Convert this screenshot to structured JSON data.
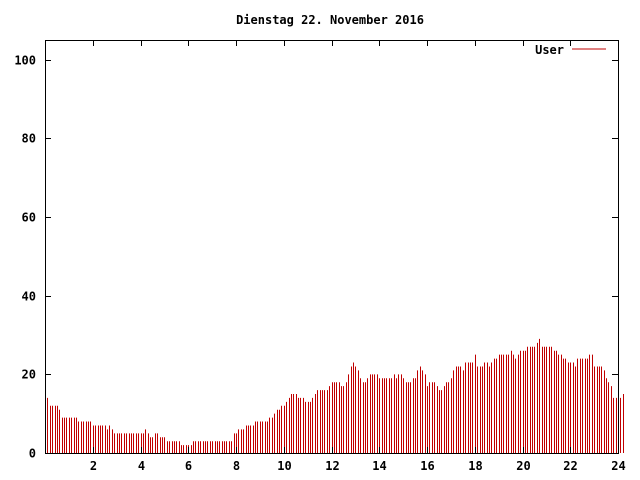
{
  "chart_data": {
    "type": "bar",
    "title": "Dienstag 22. November 2016",
    "xlabel": "",
    "ylabel": "",
    "xlim": [
      0,
      24
    ],
    "ylim": [
      0,
      105
    ],
    "xticks": [
      2,
      4,
      6,
      8,
      10,
      12,
      14,
      16,
      18,
      20,
      22,
      24
    ],
    "yticks": [
      0,
      20,
      40,
      60,
      80,
      100
    ],
    "grid": false,
    "legend_position": "top-right",
    "color": "#c00000",
    "series": [
      {
        "name": "User",
        "x_interval_hours": 0.1,
        "values": [
          15,
          14,
          12,
          12,
          12,
          12,
          11,
          9,
          9,
          9,
          9,
          9,
          9,
          9,
          8,
          8,
          8,
          8,
          8,
          8,
          7,
          7,
          7,
          7,
          7,
          7,
          6,
          7,
          6,
          5,
          5,
          5,
          5,
          5,
          5,
          5,
          5,
          5,
          5,
          5,
          5,
          5,
          6,
          5,
          4,
          4,
          5,
          5,
          4,
          4,
          4,
          3,
          3,
          3,
          3,
          3,
          3,
          2,
          2,
          2,
          2,
          2,
          3,
          3,
          3,
          3,
          3,
          3,
          3,
          3,
          3,
          3,
          3,
          3,
          3,
          3,
          3,
          3,
          3,
          5,
          5,
          6,
          6,
          6,
          7,
          7,
          7,
          7,
          8,
          8,
          8,
          8,
          8,
          8,
          9,
          9,
          10,
          11,
          11,
          12,
          12,
          13,
          14,
          15,
          15,
          15,
          14,
          14,
          14,
          13,
          13,
          13,
          14,
          15,
          16,
          16,
          16,
          16,
          16,
          17,
          18,
          18,
          18,
          18,
          17,
          17,
          18,
          20,
          22,
          23,
          22,
          21,
          19,
          18,
          18,
          19,
          20,
          20,
          20,
          20,
          19,
          19,
          19,
          19,
          19,
          19,
          20,
          19,
          20,
          20,
          19,
          18,
          18,
          18,
          19,
          19,
          21,
          22,
          21,
          20,
          17,
          18,
          18,
          18,
          17,
          16,
          16,
          17,
          18,
          18,
          19,
          21,
          22,
          22,
          22,
          21,
          23,
          23,
          23,
          23,
          25,
          22,
          22,
          22,
          23,
          23,
          22,
          23,
          24,
          24,
          25,
          25,
          25,
          25,
          25,
          26,
          25,
          24,
          25,
          26,
          26,
          26,
          27,
          27,
          27,
          27,
          28,
          29,
          27,
          27,
          27,
          27,
          27,
          26,
          26,
          25,
          25,
          24,
          24,
          23,
          23,
          23,
          22,
          24,
          24,
          24,
          24,
          24,
          25,
          25,
          22,
          22,
          22,
          22,
          21,
          19,
          18,
          17,
          14,
          14,
          14,
          14,
          15
        ]
      }
    ]
  }
}
